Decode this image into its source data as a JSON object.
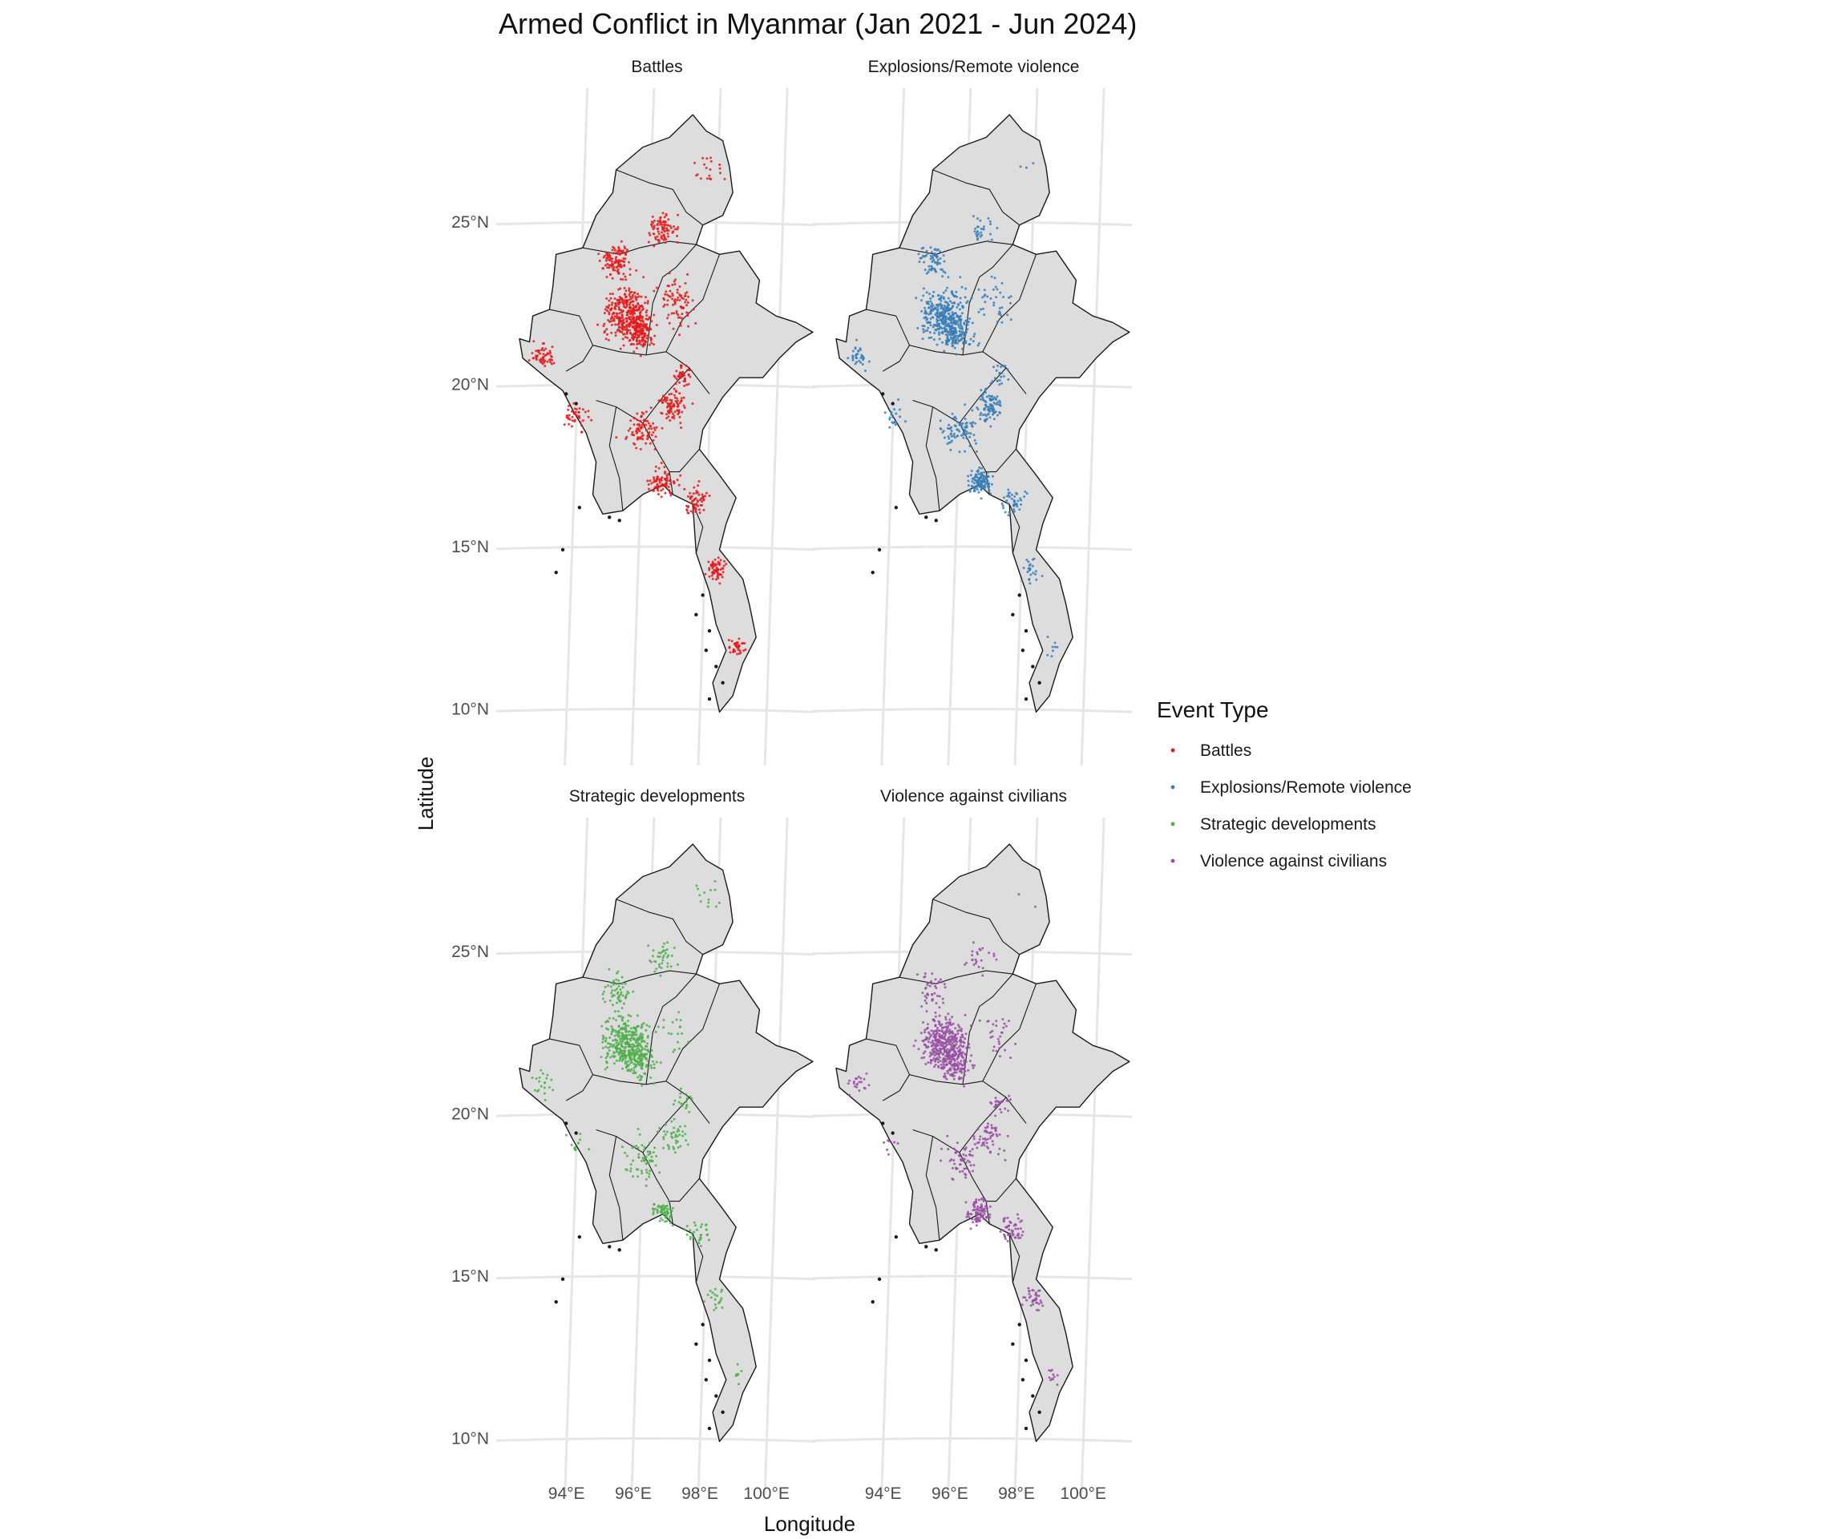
{
  "title": "Armed Conflict in Myanmar (Jan 2021 - Jun 2024)",
  "xlabel": "Longitude",
  "ylabel": "Latitude",
  "x_ticks": [
    "94°E",
    "96°E",
    "98°E",
    "100°E"
  ],
  "y_ticks": [
    "25°N",
    "20°N",
    "15°N",
    "10°N"
  ],
  "legend": {
    "title": "Event Type",
    "items": [
      {
        "label": "Battles",
        "color": "#e41a1c"
      },
      {
        "label": "Explosions/Remote violence",
        "color": "#377eb8"
      },
      {
        "label": "Strategic developments",
        "color": "#4daf4a"
      },
      {
        "label": "Violence against civilians",
        "color": "#984ea3"
      }
    ]
  },
  "panels": [
    {
      "label": "Battles",
      "color": "#e41a1c"
    },
    {
      "label": "Explosions/Remote violence",
      "color": "#377eb8"
    },
    {
      "label": "Strategic developments",
      "color": "#4daf4a"
    },
    {
      "label": "Violence against civilians",
      "color": "#984ea3"
    }
  ],
  "chart_data": {
    "type": "scatter",
    "facets": [
      "Battles",
      "Explosions/Remote violence",
      "Strategic developments",
      "Violence against civilians"
    ],
    "xlim": [
      92,
      101
    ],
    "ylim": [
      9.5,
      28.5
    ],
    "x_ticks": [
      94,
      96,
      98,
      100
    ],
    "y_ticks": [
      10,
      15,
      20,
      25
    ],
    "grid": true,
    "legend_position": "right",
    "note_density": "dense point clusters around central Myanmar (approx 95.5°E, 22°N) and along the eastern border; points are individual events"
  }
}
